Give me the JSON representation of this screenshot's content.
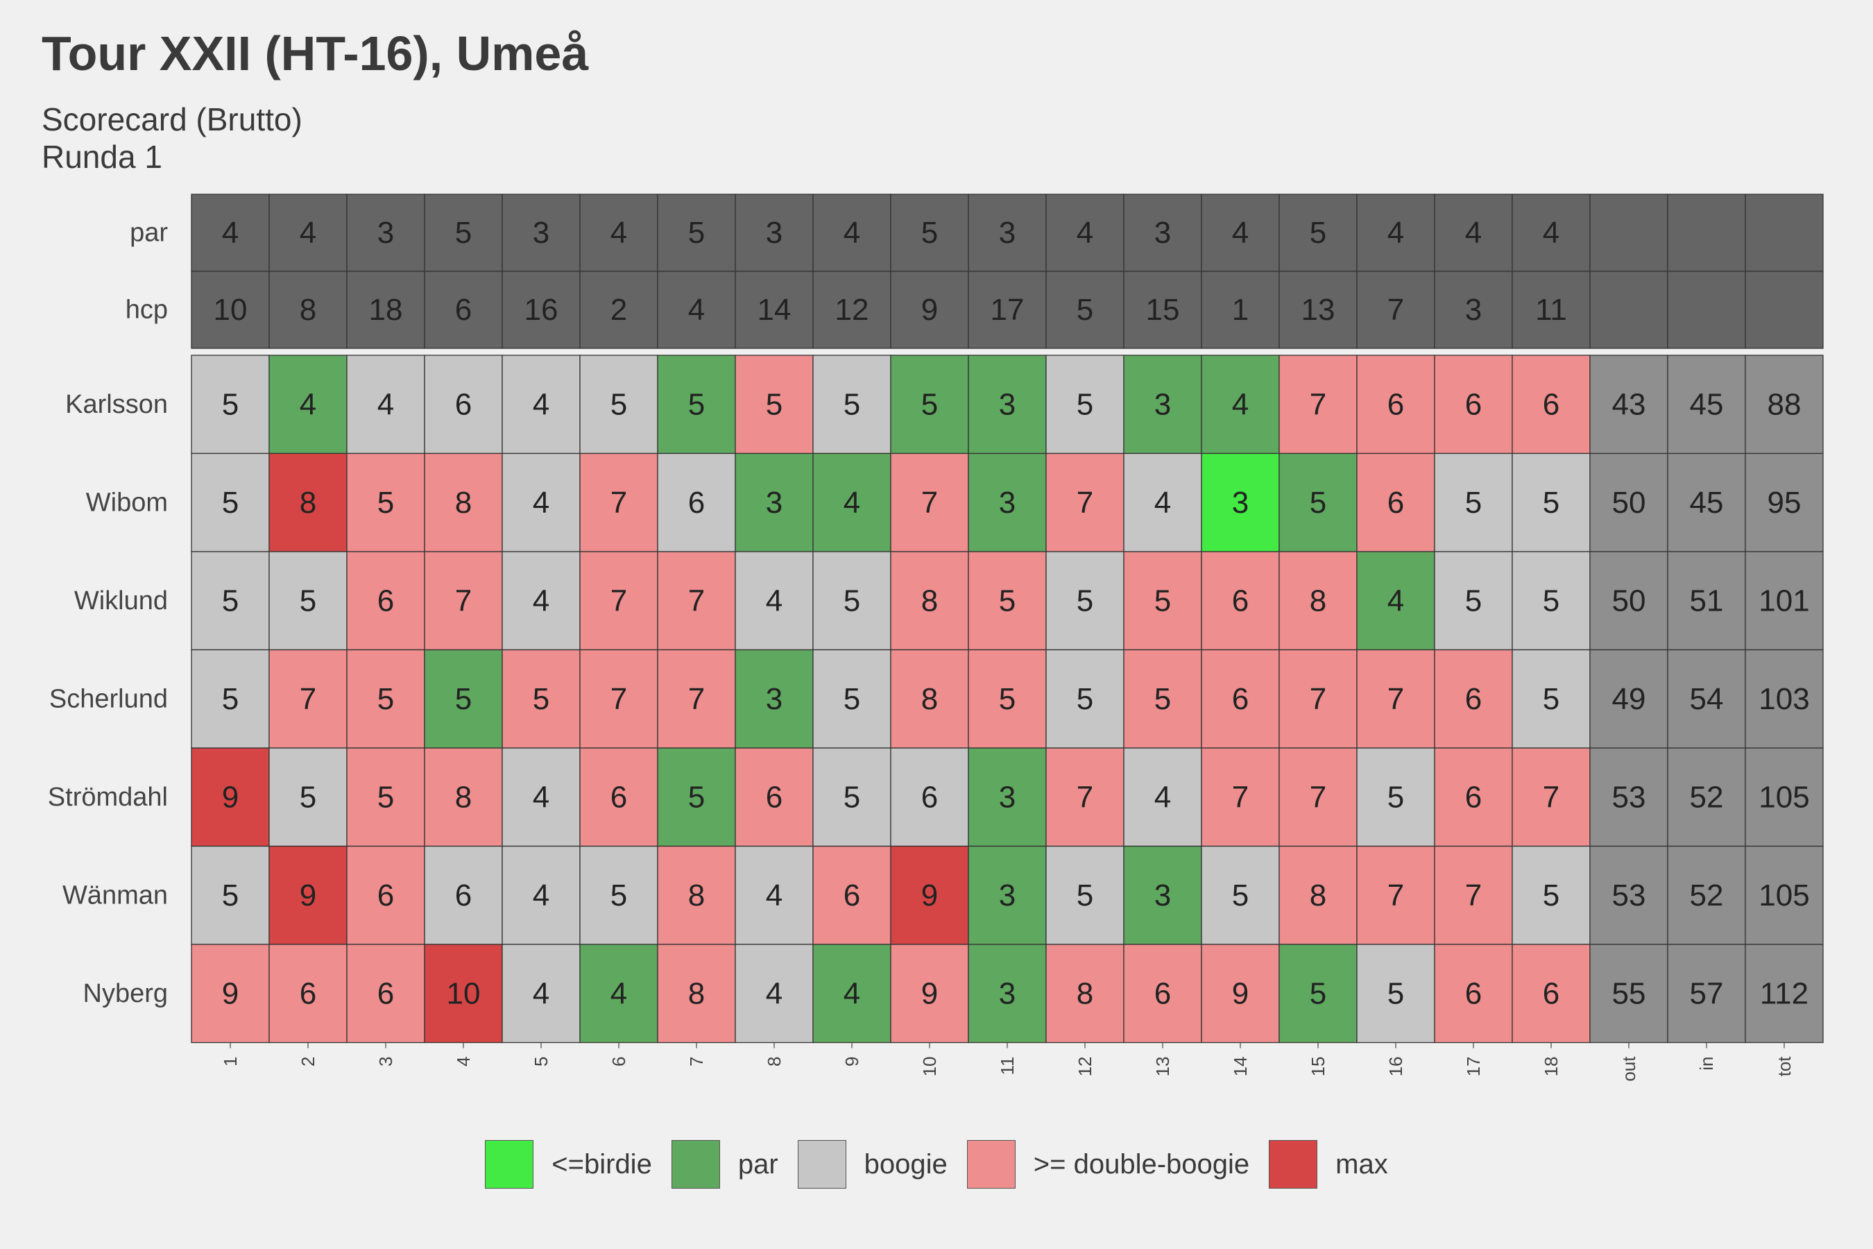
{
  "title": "Tour XXII (HT-16), Umeå",
  "subtitle_line1": "Scorecard (Brutto)",
  "subtitle_line2": "Runda 1",
  "chart_data": {
    "type": "heatmap",
    "holes": [
      "1",
      "2",
      "3",
      "4",
      "5",
      "6",
      "7",
      "8",
      "9",
      "10",
      "11",
      "12",
      "13",
      "14",
      "15",
      "16",
      "17",
      "18"
    ],
    "summary_columns": [
      "out",
      "in",
      "tot"
    ],
    "info_rows": [
      {
        "label": "par",
        "values": [
          4,
          4,
          3,
          5,
          3,
          4,
          5,
          3,
          4,
          5,
          3,
          4,
          3,
          4,
          5,
          4,
          4,
          4
        ]
      },
      {
        "label": "hcp",
        "values": [
          10,
          8,
          18,
          6,
          16,
          2,
          4,
          14,
          12,
          9,
          17,
          5,
          15,
          1,
          13,
          7,
          3,
          11
        ]
      }
    ],
    "players": [
      {
        "name": "Karlsson",
        "scores": [
          5,
          4,
          4,
          6,
          4,
          5,
          5,
          5,
          5,
          5,
          3,
          5,
          3,
          4,
          7,
          6,
          6,
          6
        ],
        "out": 43,
        "in": 45,
        "tot": 88
      },
      {
        "name": "Wibom",
        "scores": [
          5,
          8,
          5,
          8,
          4,
          7,
          6,
          3,
          4,
          7,
          3,
          7,
          4,
          3,
          5,
          6,
          5,
          5
        ],
        "out": 50,
        "in": 45,
        "tot": 95
      },
      {
        "name": "Wiklund",
        "scores": [
          5,
          5,
          6,
          7,
          4,
          7,
          7,
          4,
          5,
          8,
          5,
          5,
          5,
          6,
          8,
          4,
          5,
          5
        ],
        "out": 50,
        "in": 51,
        "tot": 101
      },
      {
        "name": "Scherlund",
        "scores": [
          5,
          7,
          5,
          5,
          5,
          7,
          7,
          3,
          5,
          8,
          5,
          5,
          5,
          6,
          7,
          7,
          6,
          5
        ],
        "out": 49,
        "in": 54,
        "tot": 103
      },
      {
        "name": "Strömdahl",
        "scores": [
          9,
          5,
          5,
          8,
          4,
          6,
          5,
          6,
          5,
          6,
          3,
          7,
          4,
          7,
          7,
          5,
          6,
          7
        ],
        "out": 53,
        "in": 52,
        "tot": 105
      },
      {
        "name": "Wänman",
        "scores": [
          5,
          9,
          6,
          6,
          4,
          5,
          8,
          4,
          6,
          9,
          3,
          5,
          3,
          5,
          8,
          7,
          7,
          5
        ],
        "out": 53,
        "in": 52,
        "tot": 105
      },
      {
        "name": "Nyberg",
        "scores": [
          9,
          6,
          6,
          10,
          4,
          4,
          8,
          4,
          4,
          9,
          3,
          8,
          6,
          9,
          5,
          5,
          6,
          6
        ],
        "out": 55,
        "in": 57,
        "tot": 112
      }
    ],
    "categories": [
      {
        "key": "birdie",
        "label": "<=birdie",
        "color": "#44ea44"
      },
      {
        "key": "par",
        "label": "par",
        "color": "#5fa85f"
      },
      {
        "key": "bogey",
        "label": "boogie",
        "color": "#c6c6c6"
      },
      {
        "key": "double_bogey",
        "label": ">= double-boogie",
        "color": "#ee8e8e"
      },
      {
        "key": "max",
        "label": "max",
        "color": "#d64545"
      }
    ],
    "legend_position": "bottom",
    "info_color": "#656565",
    "summary_color": "#8f8f8f"
  }
}
